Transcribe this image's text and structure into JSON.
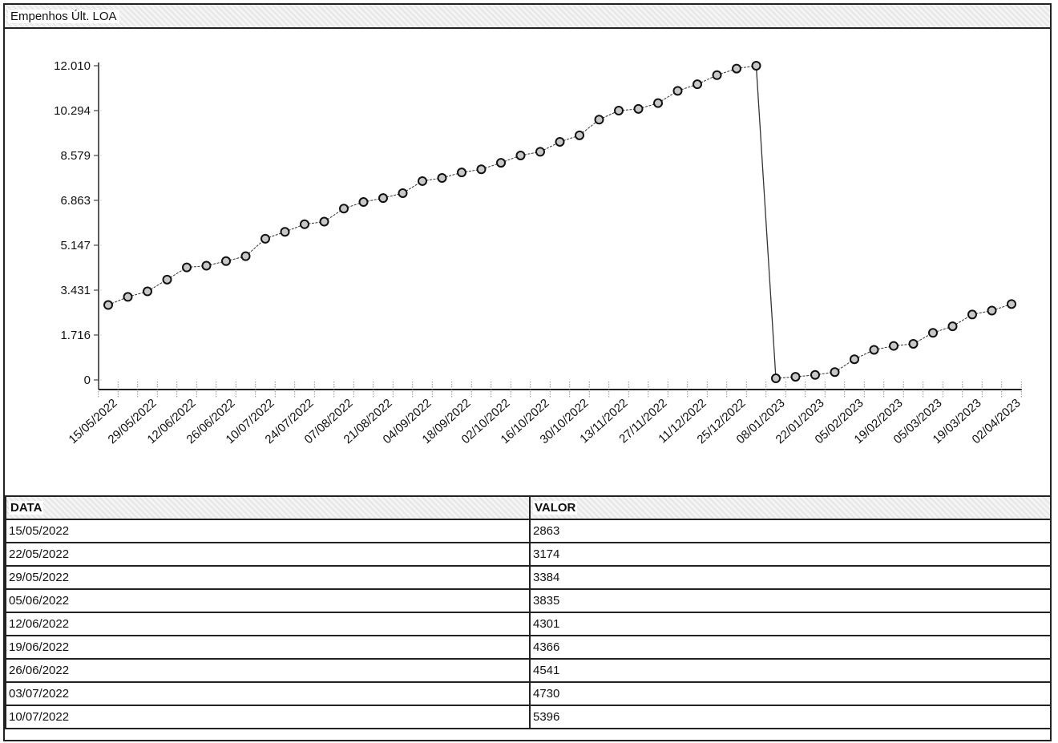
{
  "title": "Empenhos Últ. LOA",
  "chart_data": {
    "type": "line",
    "title": "Empenhos Últ. LOA",
    "xlabel": "",
    "ylabel": "",
    "ylim": [
      0,
      12010
    ],
    "yticks": [
      "0",
      "1.716",
      "3.431",
      "5.147",
      "6.863",
      "8.579",
      "10.294",
      "12.010"
    ],
    "ytick_values": [
      0,
      1716,
      3431,
      5147,
      6863,
      8579,
      10294,
      12010
    ],
    "x": [
      "15/05/2022",
      "22/05/2022",
      "29/05/2022",
      "05/06/2022",
      "12/06/2022",
      "19/06/2022",
      "26/06/2022",
      "03/07/2022",
      "10/07/2022",
      "17/07/2022",
      "24/07/2022",
      "31/07/2022",
      "07/08/2022",
      "14/08/2022",
      "21/08/2022",
      "28/08/2022",
      "04/09/2022",
      "11/09/2022",
      "18/09/2022",
      "25/09/2022",
      "02/10/2022",
      "09/10/2022",
      "16/10/2022",
      "23/10/2022",
      "30/10/2022",
      "06/11/2022",
      "13/11/2022",
      "20/11/2022",
      "27/11/2022",
      "04/12/2022",
      "11/12/2022",
      "18/12/2022",
      "25/12/2022",
      "01/01/2023",
      "08/01/2023",
      "15/01/2023",
      "22/01/2023",
      "29/01/2023",
      "05/02/2023",
      "12/02/2023",
      "19/02/2023",
      "26/02/2023",
      "05/03/2023",
      "12/03/2023",
      "19/03/2023",
      "26/03/2023",
      "02/04/2023"
    ],
    "xtick_labels": [
      "15/05/2022",
      "29/05/2022",
      "12/06/2022",
      "26/06/2022",
      "10/07/2022",
      "24/07/2022",
      "07/08/2022",
      "21/08/2022",
      "04/09/2022",
      "18/09/2022",
      "02/10/2022",
      "16/10/2022",
      "30/10/2022",
      "13/11/2022",
      "27/11/2022",
      "11/12/2022",
      "25/12/2022",
      "08/01/2023",
      "22/01/2023",
      "05/02/2023",
      "19/02/2023",
      "05/03/2023",
      "19/03/2023",
      "02/04/2023"
    ],
    "series": [
      {
        "values": [
          2863,
          3174,
          3384,
          3835,
          4301,
          4366,
          4541,
          4730,
          5396,
          5660,
          5950,
          6050,
          6550,
          6800,
          6950,
          7140,
          7600,
          7720,
          7930,
          8050,
          8300,
          8580,
          8720,
          9100,
          9350,
          9950,
          10294,
          10360,
          10580,
          11050,
          11300,
          11650,
          11900,
          12010,
          60,
          120,
          190,
          300,
          790,
          1150,
          1300,
          1380,
          1800,
          2050,
          2500,
          2650,
          2900
        ]
      }
    ]
  },
  "table": {
    "headers": {
      "date": "DATA",
      "value": "VALOR"
    },
    "rows": [
      {
        "date": "15/05/2022",
        "value": "2863"
      },
      {
        "date": "22/05/2022",
        "value": "3174"
      },
      {
        "date": "29/05/2022",
        "value": "3384"
      },
      {
        "date": "05/06/2022",
        "value": "3835"
      },
      {
        "date": "12/06/2022",
        "value": "4301"
      },
      {
        "date": "19/06/2022",
        "value": "4366"
      },
      {
        "date": "26/06/2022",
        "value": "4541"
      },
      {
        "date": "03/07/2022",
        "value": "4730"
      },
      {
        "date": "10/07/2022",
        "value": "5396"
      }
    ]
  }
}
